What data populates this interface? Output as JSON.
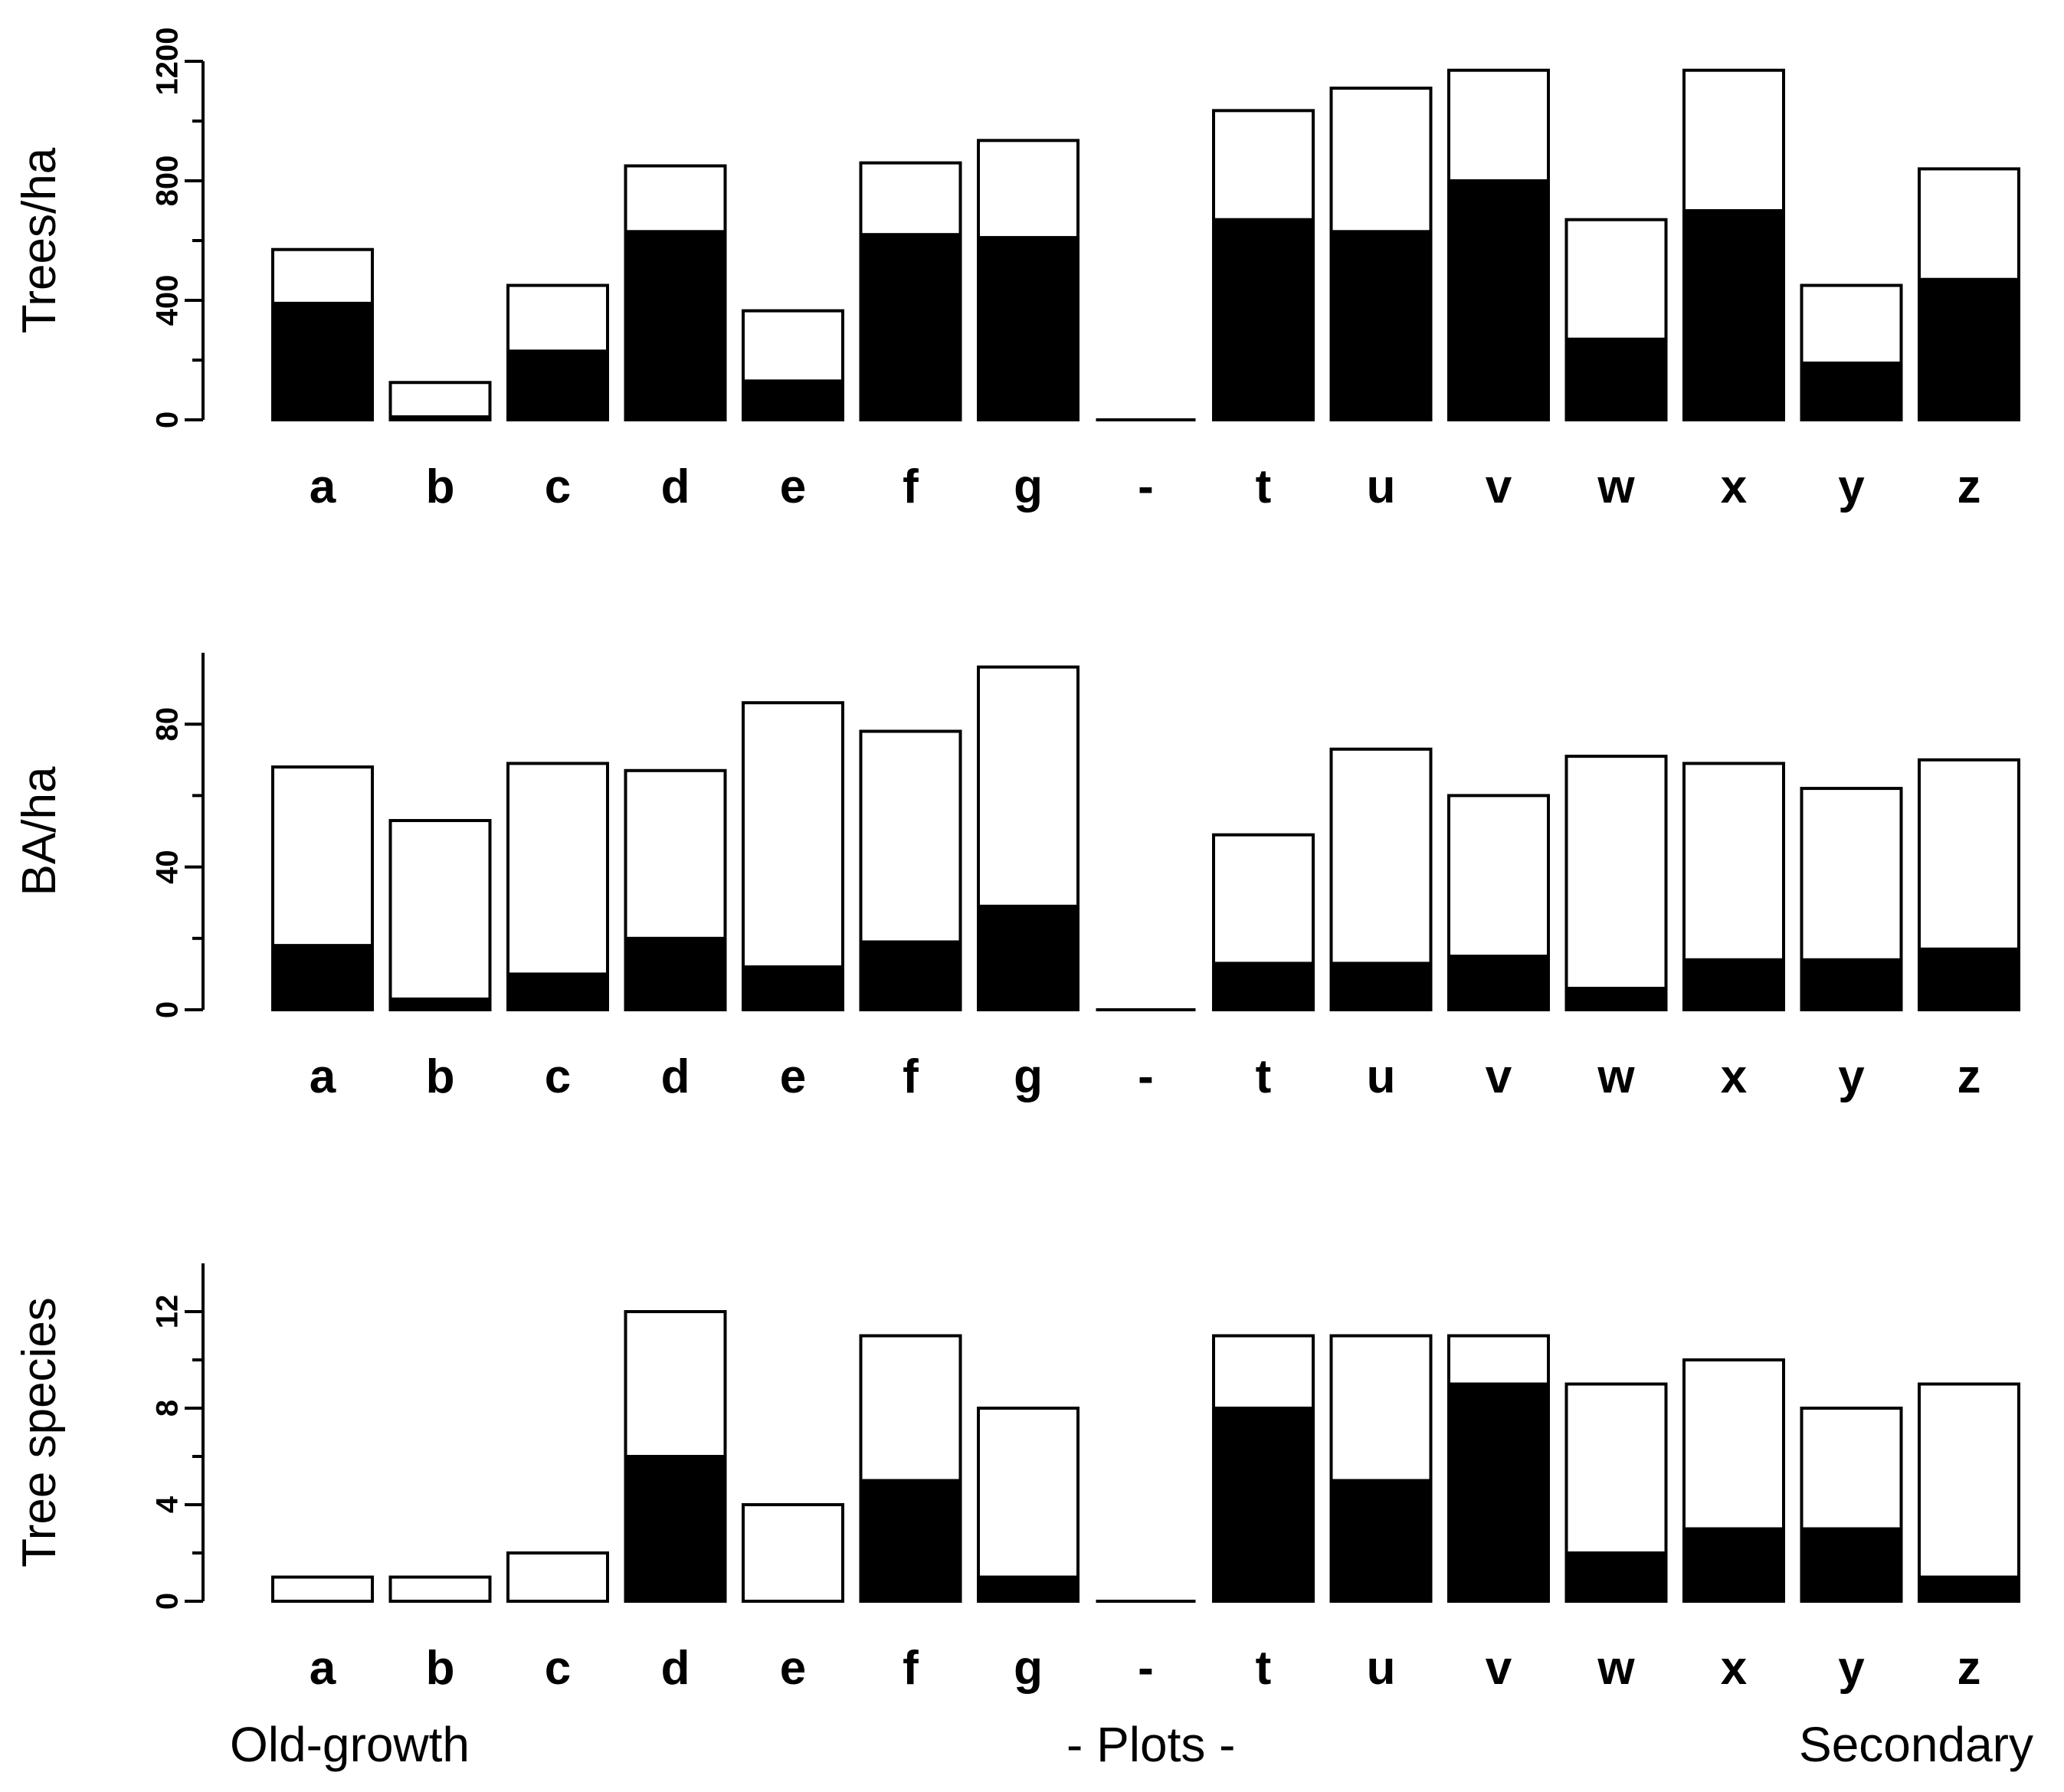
{
  "chart_data": [
    {
      "type": "bar",
      "stacked": true,
      "ylabel": "Trees/ha",
      "ylim": [
        0,
        1200
      ],
      "yticks": [
        0,
        400,
        800,
        1200
      ],
      "categories": [
        "a",
        "b",
        "c",
        "d",
        "e",
        "f",
        "g",
        "-",
        "t",
        "u",
        "v",
        "w",
        "x",
        "y",
        "z"
      ],
      "series": [
        {
          "name": "black portion",
          "color": "#000000",
          "values": [
            390,
            10,
            230,
            630,
            130,
            620,
            610,
            0,
            670,
            630,
            800,
            270,
            700,
            190,
            470
          ]
        },
        {
          "name": "total",
          "color": "#ffffff",
          "values": [
            570,
            125,
            450,
            850,
            365,
            860,
            935,
            0,
            1035,
            1110,
            1170,
            670,
            1170,
            450,
            840
          ]
        }
      ]
    },
    {
      "type": "bar",
      "stacked": true,
      "ylabel": "BA/ha",
      "ylim": [
        0,
        100
      ],
      "yticks": [
        0,
        40,
        80
      ],
      "categories": [
        "a",
        "b",
        "c",
        "d",
        "e",
        "f",
        "g",
        "-",
        "t",
        "u",
        "v",
        "w",
        "x",
        "y",
        "z"
      ],
      "series": [
        {
          "name": "black portion",
          "color": "#000000",
          "values": [
            18,
            3,
            10,
            20,
            12,
            19,
            29,
            0,
            13,
            13,
            15,
            6,
            14,
            14,
            17
          ]
        },
        {
          "name": "total",
          "color": "#ffffff",
          "values": [
            68,
            53,
            69,
            67,
            86,
            78,
            96,
            0,
            49,
            73,
            60,
            71,
            69,
            62,
            70
          ]
        }
      ]
    },
    {
      "type": "bar",
      "stacked": true,
      "ylabel": "Tree species",
      "ylim": [
        0,
        14
      ],
      "yticks": [
        0,
        4,
        8,
        12
      ],
      "categories": [
        "a",
        "b",
        "c",
        "d",
        "e",
        "f",
        "g",
        "-",
        "t",
        "u",
        "v",
        "w",
        "x",
        "y",
        "z"
      ],
      "series": [
        {
          "name": "black portion",
          "color": "#000000",
          "values": [
            0,
            0,
            0,
            6,
            0,
            5,
            1,
            0,
            8,
            5,
            9,
            2,
            3,
            3,
            1
          ]
        },
        {
          "name": "total",
          "color": "#ffffff",
          "values": [
            1,
            1,
            2,
            12,
            4,
            11,
            8,
            0,
            11,
            11,
            11,
            9,
            10,
            8,
            9
          ]
        }
      ]
    }
  ],
  "footer": {
    "left": "Old-growth",
    "center": "-  Plots  -",
    "right": "Secondary"
  }
}
